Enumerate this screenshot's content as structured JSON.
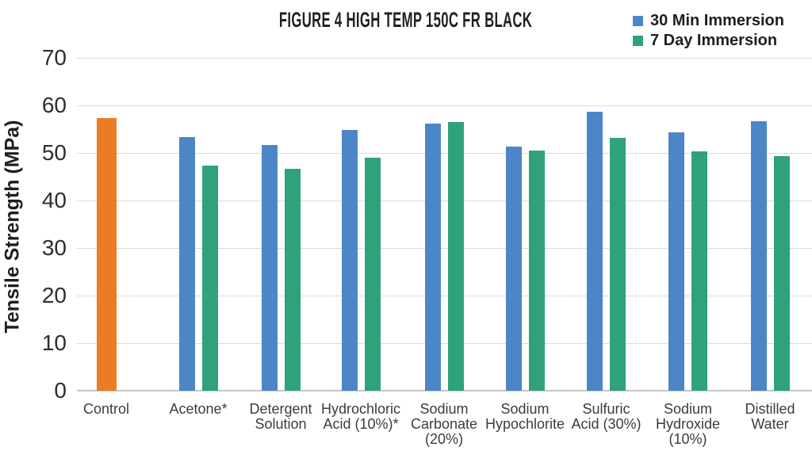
{
  "title": "FIGURE 4 HIGH TEMP 150C FR BLACK",
  "legend": {
    "items": [
      {
        "label": "30 Min Immersion",
        "color": "#4D86C6"
      },
      {
        "label": "7 Day Immersion",
        "color": "#2FA27C"
      }
    ]
  },
  "y_axis": {
    "title": "Tensile Strength (MPa)",
    "ticks": [
      0,
      10,
      20,
      30,
      40,
      50,
      60,
      70
    ]
  },
  "colors": {
    "control": "#EC7C24",
    "immersion_30min": "#4D86C6",
    "immersion_7day": "#2FA27C",
    "gridline": "#DADADA"
  },
  "chart_data": {
    "type": "bar",
    "title": "FIGURE 4 HIGH TEMP 150C FR BLACK",
    "xlabel": "",
    "ylabel": "Tensile Strength (MPa)",
    "ylim": [
      0,
      70
    ],
    "grid": true,
    "legend_position": "top-right",
    "categories": [
      "Control",
      "Acetone*",
      "Detergent Solution",
      "Hydrochloric Acid (10%)*",
      "Sodium Carbonate (20%)",
      "Sodium Hypochlorite",
      "Sulfuric Acid (30%)",
      "Sodium Hydroxide (10%)",
      "Distilled Water"
    ],
    "category_display_lines": [
      [
        "Control"
      ],
      [
        "Acetone*"
      ],
      [
        "Detergent",
        "Solution"
      ],
      [
        "Hydrochloric",
        "Acid (10%)*"
      ],
      [
        "Sodium",
        "Carbonate",
        "(20%)"
      ],
      [
        "Sodium",
        "Hypochlorite"
      ],
      [
        "Sulfuric",
        "Acid (30%)"
      ],
      [
        "Sodium",
        "Hydroxide",
        "(10%)"
      ],
      [
        "Distilled",
        "Water"
      ]
    ],
    "series": [
      {
        "name": "Control",
        "color": "#EC7C24",
        "values": [
          57.4,
          null,
          null,
          null,
          null,
          null,
          null,
          null,
          null
        ]
      },
      {
        "name": "30 Min Immersion",
        "color": "#4D86C6",
        "values": [
          null,
          53.4,
          51.6,
          54.8,
          56.2,
          51.4,
          58.6,
          54.3,
          56.7
        ]
      },
      {
        "name": "7 Day Immersion",
        "color": "#2FA27C",
        "values": [
          null,
          47.4,
          46.7,
          49.0,
          56.5,
          50.5,
          53.2,
          50.3,
          49.4
        ]
      }
    ]
  }
}
